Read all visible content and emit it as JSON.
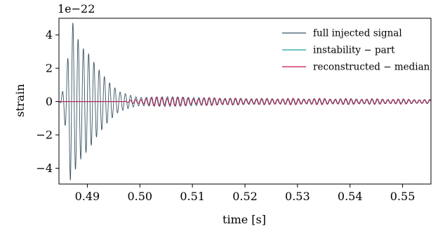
{
  "chart_data": {
    "type": "line",
    "xlabel": "time [s]",
    "ylabel": "strain",
    "y_offset_label": "1e−22",
    "xlim": [
      0.4846,
      0.5554
    ],
    "ylim": [
      -4.95,
      5.0
    ],
    "y_scale_factor": 1e-22,
    "xticks": [
      {
        "value": 0.49,
        "label": "0.49"
      },
      {
        "value": 0.5,
        "label": "0.50"
      },
      {
        "value": 0.51,
        "label": "0.51"
      },
      {
        "value": 0.52,
        "label": "0.52"
      },
      {
        "value": 0.53,
        "label": "0.53"
      },
      {
        "value": 0.54,
        "label": "0.54"
      },
      {
        "value": 0.55,
        "label": "0.55"
      }
    ],
    "yticks": [
      {
        "value": 4,
        "label": "4"
      },
      {
        "value": 2,
        "label": "2"
      },
      {
        "value": 0,
        "label": "0"
      },
      {
        "value": -2,
        "label": "−2"
      },
      {
        "value": -4,
        "label": "−4"
      }
    ],
    "legend_position": "top-right",
    "grid": false,
    "series": [
      {
        "name": "full injected signal",
        "color": "#3b5563",
        "description": "strongly oscillating signal with large burst before 0.50 s then small oscillations",
        "envelope": {
          "t": [
            0.4848,
            0.4855,
            0.4862,
            0.4868,
            0.4873,
            0.4878,
            0.4885,
            0.4892,
            0.49,
            0.491,
            0.492,
            0.493,
            0.494,
            0.495,
            0.496,
            0.497,
            0.498,
            0.499,
            0.5,
            0.505,
            0.51,
            0.515,
            0.52,
            0.53,
            0.54,
            0.55,
            0.5554
          ],
          "amp": [
            0.0,
            0.9,
            2.3,
            4.9,
            4.7,
            4.0,
            3.6,
            3.2,
            3.0,
            2.5,
            2.0,
            1.6,
            1.2,
            0.9,
            0.6,
            0.5,
            0.4,
            0.3,
            0.25,
            0.3,
            0.25,
            0.2,
            0.18,
            0.15,
            0.15,
            0.12,
            0.1
          ]
        },
        "frequency_hz": 1000
      },
      {
        "name": "instability − part",
        "color": "#17a2a2",
        "description": "small oscillations after about 0.497 s, mostly hidden beneath median",
        "envelope": {
          "t": [
            0.4846,
            0.497,
            0.499,
            0.505,
            0.51,
            0.52,
            0.53,
            0.54,
            0.55,
            0.5554
          ],
          "amp": [
            0.0,
            0.0,
            0.15,
            0.3,
            0.25,
            0.2,
            0.18,
            0.18,
            0.14,
            0.12
          ]
        },
        "frequency_hz": 1000
      },
      {
        "name": "reconstructed − median",
        "color": "#c8144b",
        "description": "reconstruction following instability part after about 0.497 s",
        "envelope": {
          "t": [
            0.4846,
            0.497,
            0.499,
            0.505,
            0.51,
            0.515,
            0.52,
            0.53,
            0.54,
            0.55,
            0.5554
          ],
          "amp": [
            0.0,
            0.0,
            0.15,
            0.32,
            0.22,
            0.25,
            0.18,
            0.2,
            0.18,
            0.16,
            0.12
          ]
        },
        "frequency_hz": 1000
      }
    ]
  }
}
